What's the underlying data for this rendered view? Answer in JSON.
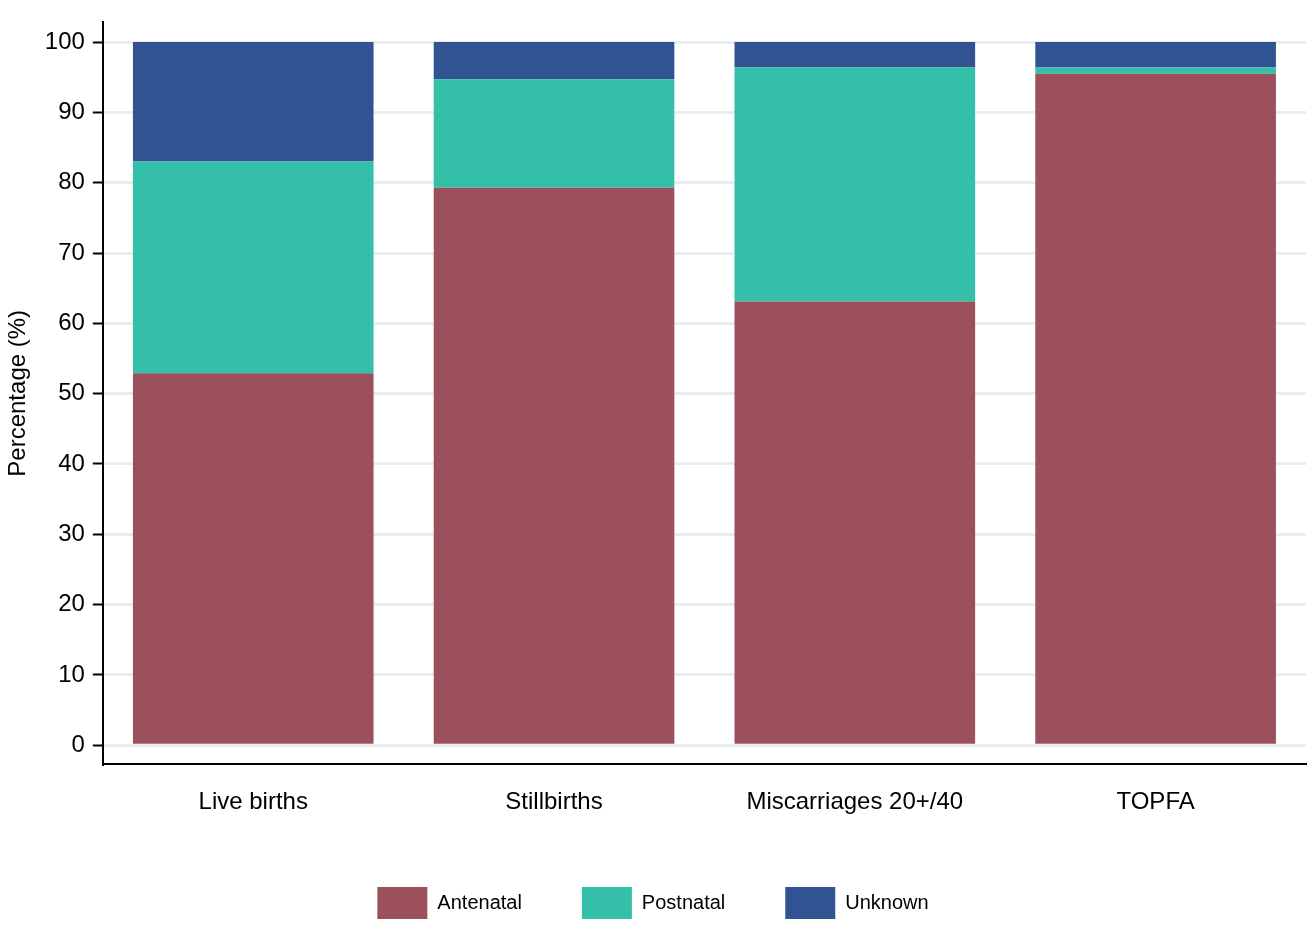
{
  "chart_data": {
    "type": "bar",
    "ylabel": "Percentage (%)",
    "stacked": true,
    "grid": "y",
    "legend": "bottom",
    "categories": [
      "Live births",
      "Stillbirths",
      "Miscarriages 20+/40",
      "TOPFA"
    ],
    "ylim": [
      -2.7,
      102.8
    ],
    "yticks": [
      0,
      10,
      20,
      30,
      40,
      50,
      60,
      70,
      80,
      90,
      100
    ],
    "series": [
      {
        "name": "Antenatal",
        "color": "#9b505b",
        "values": [
          52.9,
          79.3,
          63.1,
          95.5
        ]
      },
      {
        "name": "Postnatal",
        "color": "#33bfa8",
        "values": [
          30.1,
          15.4,
          33.3,
          0.9
        ]
      },
      {
        "name": "Unknown",
        "color": "#325392",
        "values": [
          17.0,
          5.3,
          3.6,
          3.6
        ]
      }
    ]
  }
}
